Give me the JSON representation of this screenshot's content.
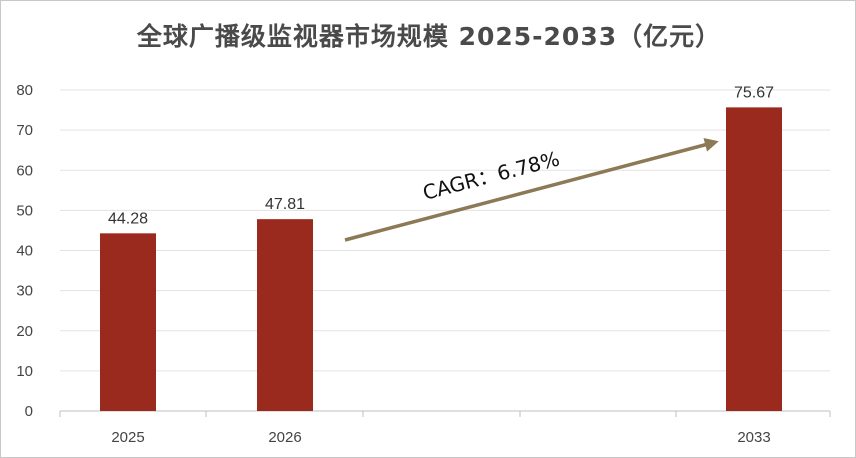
{
  "chart_data": {
    "type": "bar",
    "title": "全球广播级监视器市场规模 2025-2033（亿元）",
    "categories": [
      "2025",
      "2026",
      "2033"
    ],
    "values": [
      44.28,
      47.81,
      75.67
    ],
    "data_labels": [
      "44.28",
      "47.81",
      "75.67"
    ],
    "ylim": [
      0,
      80
    ],
    "yticks": [
      "0",
      "10",
      "20",
      "30",
      "40",
      "50",
      "60",
      "70",
      "80"
    ],
    "xlabel": "",
    "ylabel": "",
    "grid": true,
    "bar_color": "#9b2a1e",
    "annotation": {
      "text": "CAGR：6.78%",
      "arrow_color": "#8b7a55"
    }
  }
}
